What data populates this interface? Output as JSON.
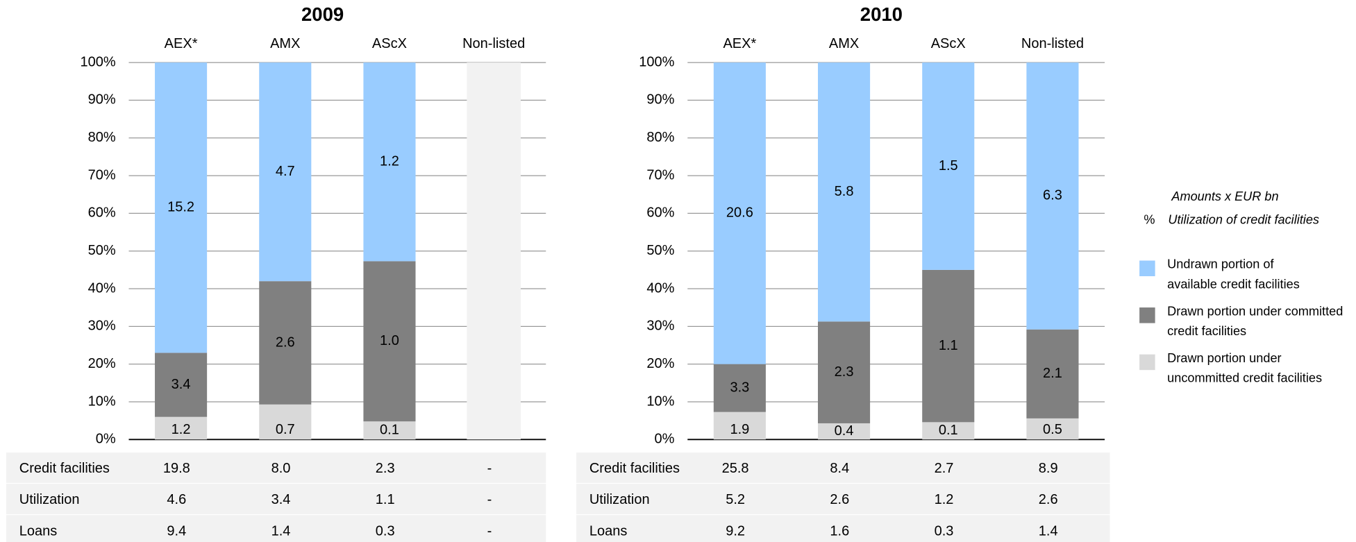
{
  "chart_data": [
    {
      "type": "bar",
      "stacked": true,
      "title": "2009",
      "categories": [
        "AEX*",
        "AMX",
        "AScX",
        "Non-listed"
      ],
      "series": [
        {
          "values": [
            6,
            9.3,
            4.8,
            null
          ],
          "labels": [
            "1.2",
            "0.7",
            "0.1",
            null
          ]
        },
        {
          "values": [
            17,
            32.7,
            42.5,
            null
          ],
          "labels": [
            "3.4",
            "2.6",
            "1.0",
            null
          ]
        },
        {
          "values": [
            77,
            58,
            52.7,
            null
          ],
          "labels": [
            "15.2",
            "4.7",
            "1.2",
            null
          ]
        }
      ],
      "ylim": [
        0,
        100
      ],
      "yticks": [
        {
          "value": 0,
          "label": "0%"
        },
        {
          "value": 10,
          "label": "10%"
        },
        {
          "value": 20,
          "label": "20%"
        },
        {
          "value": 30,
          "label": "30%"
        },
        {
          "value": 40,
          "label": "40%"
        },
        {
          "value": 50,
          "label": "50%"
        },
        {
          "value": 60,
          "label": "60%"
        },
        {
          "value": 70,
          "label": "70%"
        },
        {
          "value": 80,
          "label": "80%"
        },
        {
          "value": 90,
          "label": "90%"
        },
        {
          "value": 100,
          "label": "100%"
        }
      ],
      "grid": true,
      "table": {
        "rows": [
          {
            "label": "Credit facilities",
            "values": [
              "19.8",
              "8.0",
              "2.3",
              "-"
            ]
          },
          {
            "label": "Utilization",
            "values": [
              "4.6",
              "3.4",
              "1.1",
              "-"
            ]
          },
          {
            "label": "Loans",
            "values": [
              "9.4",
              "1.4",
              "0.3",
              "-"
            ]
          }
        ]
      }
    },
    {
      "type": "bar",
      "stacked": true,
      "title": "2010",
      "categories": [
        "AEX*",
        "AMX",
        "AScX",
        "Non-listed"
      ],
      "series": [
        {
          "values": [
            7.3,
            4.3,
            4.6,
            5.6
          ],
          "labels": [
            "1.9",
            "0.4",
            "0.1",
            "0.5"
          ]
        },
        {
          "values": [
            12.7,
            27,
            40.4,
            23.6
          ],
          "labels": [
            "3.3",
            "2.3",
            "1.1",
            "2.1"
          ]
        },
        {
          "values": [
            80,
            68.7,
            55,
            70.8
          ],
          "labels": [
            "20.6",
            "5.8",
            "1.5",
            "6.3"
          ]
        }
      ],
      "ylim": [
        0,
        100
      ],
      "yticks": [
        {
          "value": 0,
          "label": "0%"
        },
        {
          "value": 10,
          "label": "10%"
        },
        {
          "value": 20,
          "label": "20%"
        },
        {
          "value": 30,
          "label": "30%"
        },
        {
          "value": 40,
          "label": "40%"
        },
        {
          "value": 50,
          "label": "50%"
        },
        {
          "value": 60,
          "label": "60%"
        },
        {
          "value": 70,
          "label": "70%"
        },
        {
          "value": 80,
          "label": "80%"
        },
        {
          "value": 90,
          "label": "90%"
        },
        {
          "value": 100,
          "label": "100%"
        }
      ],
      "grid": true,
      "table": {
        "rows": [
          {
            "label": "Credit facilities",
            "values": [
              "25.8",
              "8.4",
              "2.7",
              "8.9"
            ]
          },
          {
            "label": "Utilization",
            "values": [
              "5.2",
              "2.6",
              "1.2",
              "2.6"
            ]
          },
          {
            "label": "Loans",
            "values": [
              "9.2",
              "1.6",
              "0.3",
              "1.4"
            ]
          }
        ]
      }
    }
  ],
  "legend": {
    "note": "Amounts x EUR bn",
    "symbol": "%",
    "symbol_note": "Utilization of credit facilities",
    "items": [
      {
        "name": "Drawn portion under uncommitted credit facilities",
        "color": "#d9d9d9"
      },
      {
        "name": "Drawn portion under committed credit facilities",
        "color": "#808080"
      },
      {
        "name": "Undrawn portion of available credit facilities",
        "color": "#99ccff"
      }
    ]
  }
}
